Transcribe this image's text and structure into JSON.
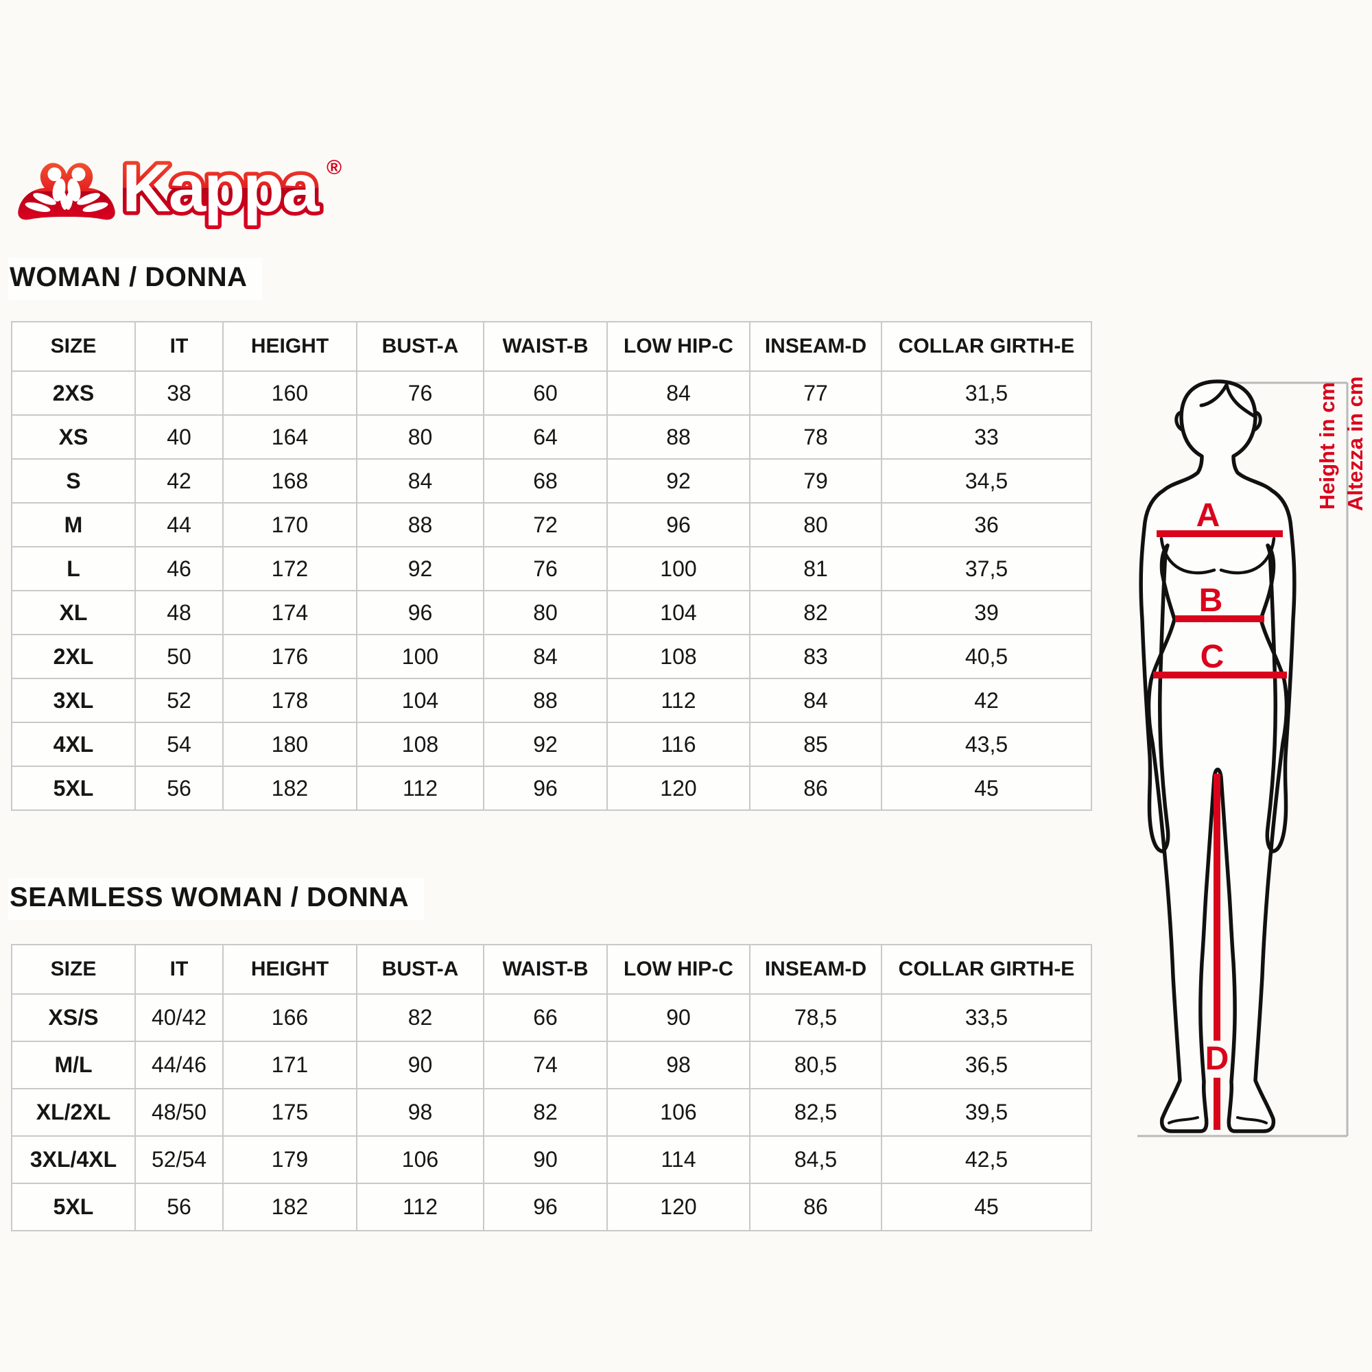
{
  "logo": {
    "brand": "Kappa",
    "registered_mark": "®"
  },
  "sections": [
    {
      "heading": "WOMAN / DONNA",
      "columns": [
        "SIZE",
        "IT",
        "HEIGHT",
        "BUST-A",
        "WAIST-B",
        "LOW HIP-C",
        "INSEAM-D",
        "COLLAR GIRTH-E"
      ],
      "rows": [
        [
          "2XS",
          "38",
          "160",
          "76",
          "60",
          "84",
          "77",
          "31,5"
        ],
        [
          "XS",
          "40",
          "164",
          "80",
          "64",
          "88",
          "78",
          "33"
        ],
        [
          "S",
          "42",
          "168",
          "84",
          "68",
          "92",
          "79",
          "34,5"
        ],
        [
          "M",
          "44",
          "170",
          "88",
          "72",
          "96",
          "80",
          "36"
        ],
        [
          "L",
          "46",
          "172",
          "92",
          "76",
          "100",
          "81",
          "37,5"
        ],
        [
          "XL",
          "48",
          "174",
          "96",
          "80",
          "104",
          "82",
          "39"
        ],
        [
          "2XL",
          "50",
          "176",
          "100",
          "84",
          "108",
          "83",
          "40,5"
        ],
        [
          "3XL",
          "52",
          "178",
          "104",
          "88",
          "112",
          "84",
          "42"
        ],
        [
          "4XL",
          "54",
          "180",
          "108",
          "92",
          "116",
          "85",
          "43,5"
        ],
        [
          "5XL",
          "56",
          "182",
          "112",
          "96",
          "120",
          "86",
          "45"
        ]
      ]
    },
    {
      "heading": "SEAMLESS WOMAN / DONNA",
      "columns": [
        "SIZE",
        "IT",
        "HEIGHT",
        "BUST-A",
        "WAIST-B",
        "LOW HIP-C",
        "INSEAM-D",
        "COLLAR GIRTH-E"
      ],
      "rows": [
        [
          "XS/S",
          "40/42",
          "166",
          "82",
          "66",
          "90",
          "78,5",
          "33,5"
        ],
        [
          "M/L",
          "44/46",
          "171",
          "90",
          "74",
          "98",
          "80,5",
          "36,5"
        ],
        [
          "XL/2XL",
          "48/50",
          "175",
          "98",
          "82",
          "106",
          "82,5",
          "39,5"
        ],
        [
          "3XL/4XL",
          "52/54",
          "179",
          "106",
          "90",
          "114",
          "84,5",
          "42,5"
        ],
        [
          "5XL",
          "56",
          "182",
          "112",
          "96",
          "120",
          "86",
          "45"
        ]
      ]
    }
  ],
  "figure": {
    "label_a": "A",
    "label_b": "B",
    "label_c": "C",
    "label_d": "D",
    "height_label_en": "Height in cm",
    "height_label_it": "Altezza in cm"
  },
  "colors": {
    "brand_red": "#e2001a",
    "measure_red": "#d9041c",
    "table_border": "#c9c9c9",
    "frame_gray": "#b9b9b9",
    "text": "#141414"
  }
}
